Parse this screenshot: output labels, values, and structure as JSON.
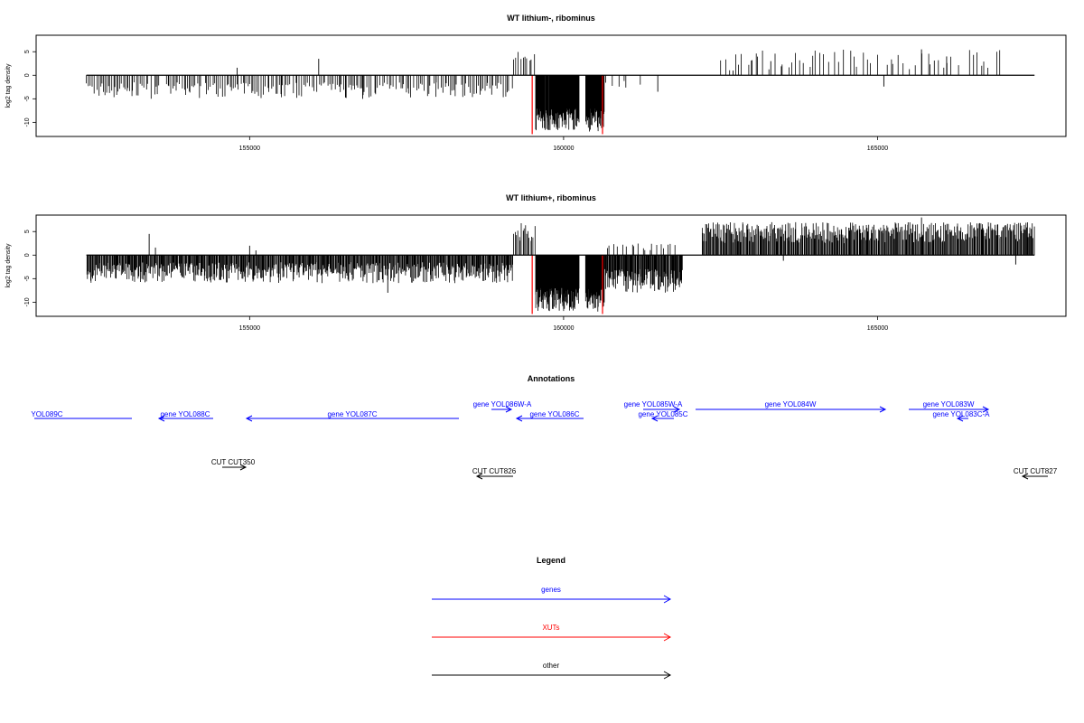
{
  "chart_data": [
    {
      "type": "bar",
      "title": "WT lithium-, ribominus",
      "ylabel": "log2 tag density",
      "xlim": [
        151600,
        168000
      ],
      "ylim": [
        -13,
        8.5
      ],
      "xticks": [
        155000,
        160000,
        165000
      ],
      "yticks": [
        5,
        0,
        -5,
        -10
      ],
      "xtick_labels": [
        "155000",
        "160000",
        "165000"
      ],
      "ytick_labels": [
        "5",
        "0",
        "-5",
        "-10"
      ],
      "baseline": {
        "from": 152400,
        "to": 167500
      },
      "red_marks": [
        159500,
        160620
      ],
      "density": [
        {
          "from": 152400,
          "to": 159200,
          "min": -5,
          "max": -1.5,
          "density": 55
        },
        {
          "from": 159200,
          "to": 159550,
          "min": 3,
          "max": 5,
          "density": 40
        },
        {
          "from": 159550,
          "to": 160250,
          "min": -12,
          "max": -7,
          "density": 220
        },
        {
          "from": 160350,
          "to": 160650,
          "min": -12,
          "max": -7,
          "density": 220
        },
        {
          "from": 160650,
          "to": 161300,
          "min": -3,
          "max": -1,
          "density": 18
        },
        {
          "from": 162500,
          "to": 167000,
          "min": 1,
          "max": 5.5,
          "density": 22
        }
      ],
      "spikes": [
        {
          "x": 154800,
          "y": 1.6
        },
        {
          "x": 156100,
          "y": 3.5
        },
        {
          "x": 155500,
          "y": -4
        },
        {
          "x": 156800,
          "y": -5
        },
        {
          "x": 161500,
          "y": -3.5
        },
        {
          "x": 162700,
          "y": 1
        },
        {
          "x": 163000,
          "y": 3.2
        },
        {
          "x": 163300,
          "y": 3
        },
        {
          "x": 165100,
          "y": -2.4
        },
        {
          "x": 165700,
          "y": 5.5
        },
        {
          "x": 166100,
          "y": 4
        }
      ]
    },
    {
      "type": "bar",
      "title": "WT lithium+, ribominus",
      "ylabel": "log2 tag density",
      "xlim": [
        151600,
        168000
      ],
      "ylim": [
        -13,
        8.5
      ],
      "xticks": [
        155000,
        160000,
        165000
      ],
      "yticks": [
        5,
        0,
        -5,
        -10
      ],
      "xtick_labels": [
        "155000",
        "160000",
        "165000"
      ],
      "ytick_labels": [
        "5",
        "0",
        "-5",
        "-10"
      ],
      "baseline": {
        "from": 152400,
        "to": 167500
      },
      "red_marks": [
        159500,
        160620
      ],
      "density": [
        {
          "from": 152400,
          "to": 159200,
          "min": -6,
          "max": -1.5,
          "density": 120
        },
        {
          "from": 159200,
          "to": 159550,
          "min": 3,
          "max": 7,
          "density": 70
        },
        {
          "from": 159550,
          "to": 160250,
          "min": -12,
          "max": -7,
          "density": 240
        },
        {
          "from": 160350,
          "to": 160650,
          "min": -12,
          "max": -7,
          "density": 240
        },
        {
          "from": 160650,
          "to": 161900,
          "min": -8,
          "max": -3,
          "density": 140
        },
        {
          "from": 160650,
          "to": 161800,
          "min": 1,
          "max": 2.5,
          "density": 25
        },
        {
          "from": 162200,
          "to": 167500,
          "min": 2.5,
          "max": 7,
          "density": 110
        }
      ],
      "spikes": [
        {
          "x": 153400,
          "y": 4.5
        },
        {
          "x": 153500,
          "y": 1.6
        },
        {
          "x": 155000,
          "y": 2
        },
        {
          "x": 155100,
          "y": 1
        },
        {
          "x": 157200,
          "y": -8
        },
        {
          "x": 163500,
          "y": -1.2
        },
        {
          "x": 165700,
          "y": 8
        },
        {
          "x": 167200,
          "y": -2
        }
      ]
    }
  ],
  "annotations": {
    "title": "Annotations",
    "genes": [
      {
        "label": "YOL089C",
        "label_display": "YOL089C"
      },
      {
        "label": "gene YOL088C"
      },
      {
        "label": "gene YOL087C"
      },
      {
        "label": "gene YOL086W-A"
      },
      {
        "label": "gene YOL086C"
      },
      {
        "label": "gene YOL085W-A"
      },
      {
        "label": "gene YOL085C"
      },
      {
        "label": "gene YOL084W"
      },
      {
        "label": "gene YOL083W"
      },
      {
        "label": "gene YOL083C-A"
      }
    ],
    "other": [
      {
        "label": "CUT CUT350"
      },
      {
        "label": "CUT CUT826"
      },
      {
        "label": "CUT CUT827"
      }
    ]
  },
  "legend": {
    "title": "Legend",
    "items": [
      {
        "label": "genes",
        "color": "#0000ff"
      },
      {
        "label": "XUTs",
        "color": "#ff0000"
      },
      {
        "label": "other",
        "color": "#000000"
      }
    ]
  },
  "colors": {
    "gene": "#0000ff",
    "xut": "#ff0000",
    "other": "#000000",
    "bar": "#000000"
  }
}
